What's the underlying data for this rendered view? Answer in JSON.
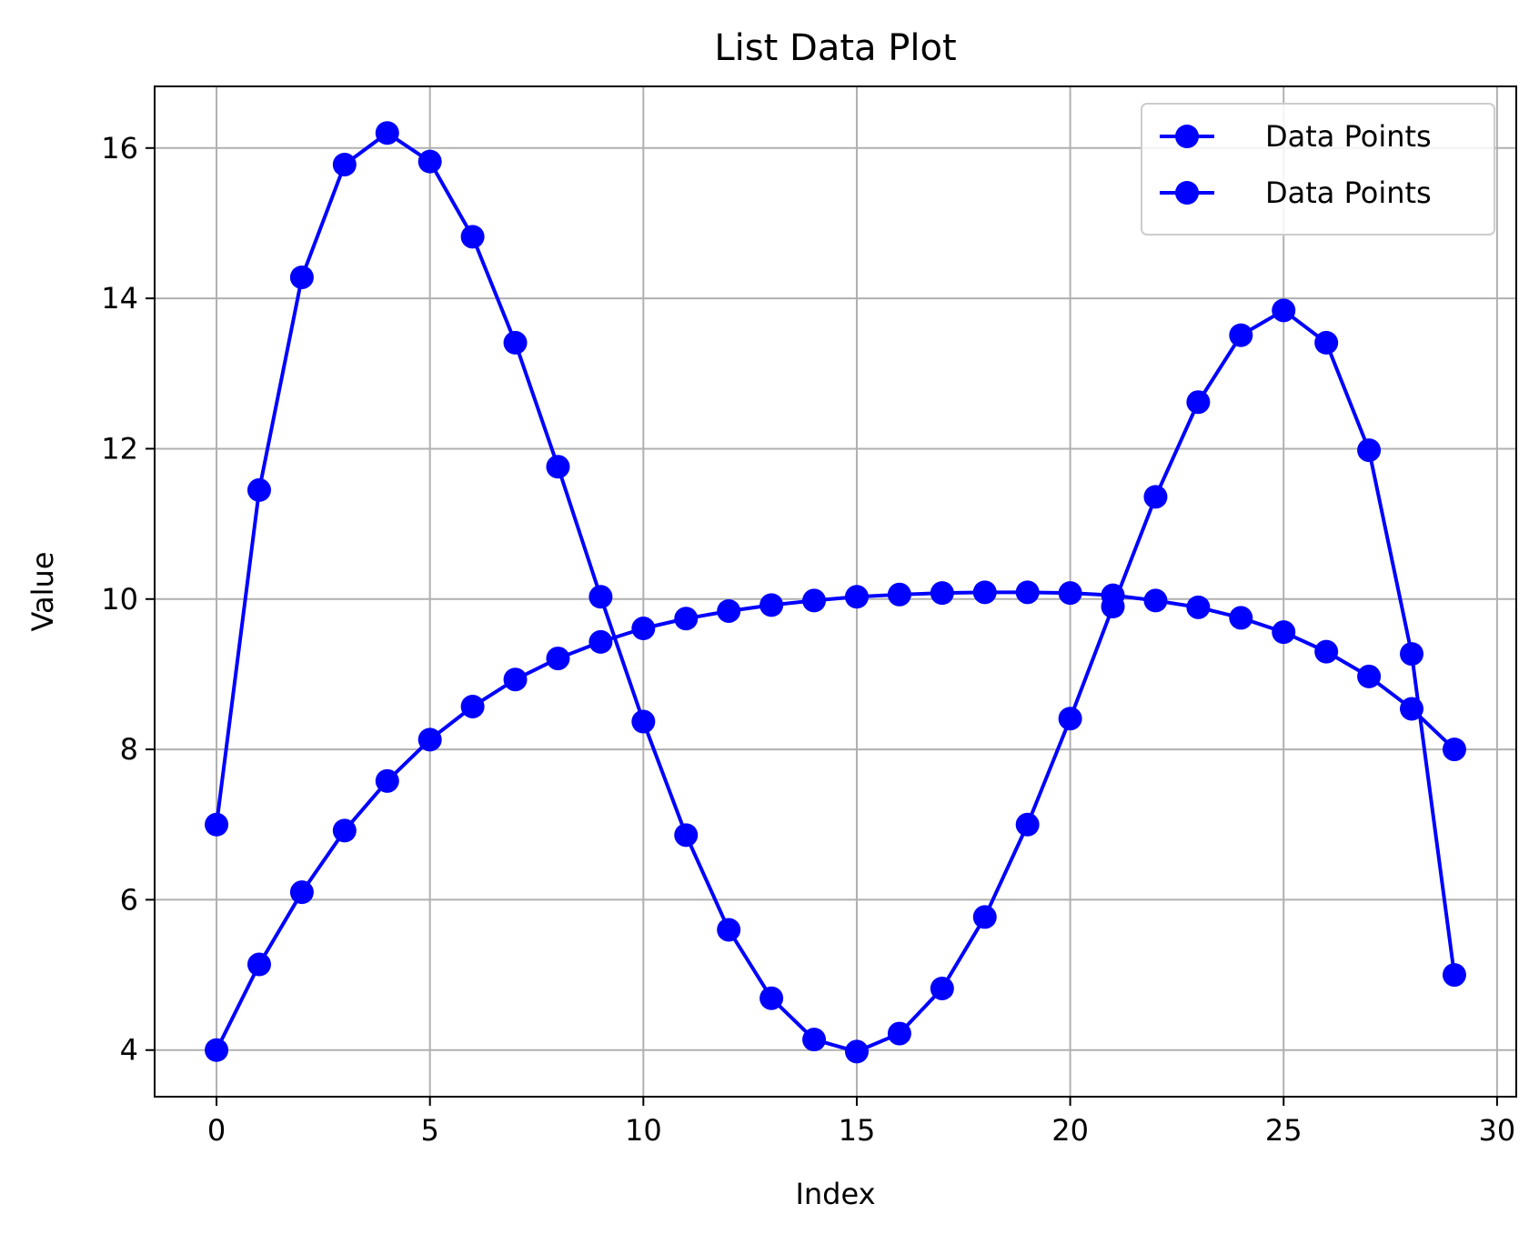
{
  "chart_data": {
    "type": "line",
    "title": "List Data Plot",
    "xlabel": "Index",
    "ylabel": "Value",
    "xlim": [
      -1.45,
      30.45
    ],
    "ylim": [
      3.38,
      16.82
    ],
    "xticks": [
      0,
      5,
      10,
      15,
      20,
      25,
      30
    ],
    "yticks": [
      4,
      6,
      8,
      10,
      12,
      14,
      16
    ],
    "grid": true,
    "legend_position": "top-right",
    "series": [
      {
        "name": "Data Points",
        "color": "#0000ff",
        "marker": "circle",
        "x": [
          0,
          1,
          2,
          3,
          4,
          5,
          6,
          7,
          8,
          9,
          10,
          11,
          12,
          13,
          14,
          15,
          16,
          17,
          18,
          19,
          20,
          21,
          22,
          23,
          24,
          25,
          26,
          27,
          28,
          29
        ],
        "values": [
          7.0,
          11.45,
          14.28,
          15.78,
          16.2,
          15.82,
          14.82,
          13.41,
          11.76,
          10.03,
          8.37,
          6.86,
          5.6,
          4.69,
          4.14,
          3.98,
          4.22,
          4.82,
          5.77,
          7.0,
          8.41,
          9.9,
          11.36,
          12.62,
          13.51,
          13.84,
          13.41,
          11.98,
          9.27,
          5.0
        ]
      },
      {
        "name": "Data Points",
        "color": "#0000ff",
        "marker": "circle",
        "x": [
          0,
          1,
          2,
          3,
          4,
          5,
          6,
          7,
          8,
          9,
          10,
          11,
          12,
          13,
          14,
          15,
          16,
          17,
          18,
          19,
          20,
          21,
          22,
          23,
          24,
          25,
          26,
          27,
          28,
          29
        ],
        "values": [
          4.0,
          5.14,
          6.1,
          6.92,
          7.58,
          8.13,
          8.57,
          8.93,
          9.21,
          9.43,
          9.61,
          9.74,
          9.84,
          9.92,
          9.98,
          10.03,
          10.06,
          10.08,
          10.09,
          10.09,
          10.08,
          10.05,
          9.98,
          9.89,
          9.75,
          9.56,
          9.3,
          8.97,
          8.54,
          8.0
        ]
      }
    ]
  }
}
